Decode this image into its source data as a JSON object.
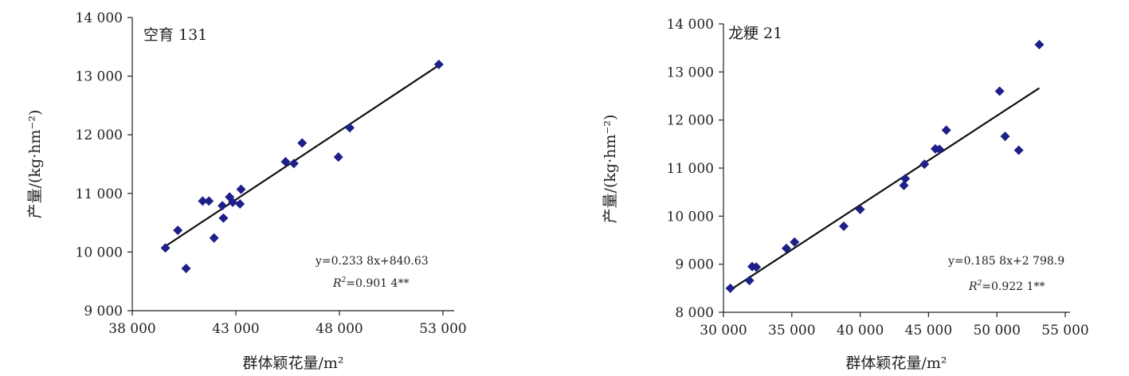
{
  "chart_data": [
    {
      "type": "scatter",
      "title": "空育 131",
      "xlabel": "群体颖花量/m²",
      "ylabel": "产量/(kg·hm⁻²)",
      "xlim": [
        38000,
        53000
      ],
      "ylim": [
        9000,
        14000
      ],
      "xticks": [
        38000,
        43000,
        48000,
        53000
      ],
      "yticks": [
        9000,
        10000,
        11000,
        12000,
        13000,
        14000
      ],
      "xtick_labels": [
        "38 000",
        "43 000",
        "48 000",
        "53 000"
      ],
      "ytick_labels": [
        "9 000",
        "10 000",
        "11 000",
        "12 000",
        "13 000",
        "14 000"
      ],
      "marker_color": "#1f1f8a",
      "points": [
        {
          "x": 39600,
          "y": 10070
        },
        {
          "x": 40200,
          "y": 10370
        },
        {
          "x": 40600,
          "y": 9720
        },
        {
          "x": 41400,
          "y": 10870
        },
        {
          "x": 41700,
          "y": 10870
        },
        {
          "x": 41950,
          "y": 10240
        },
        {
          "x": 42350,
          "y": 10790
        },
        {
          "x": 42400,
          "y": 10580
        },
        {
          "x": 42700,
          "y": 10940
        },
        {
          "x": 42850,
          "y": 10850
        },
        {
          "x": 43200,
          "y": 10820
        },
        {
          "x": 43250,
          "y": 11070
        },
        {
          "x": 45400,
          "y": 11540
        },
        {
          "x": 45800,
          "y": 11510
        },
        {
          "x": 46200,
          "y": 11860
        },
        {
          "x": 47950,
          "y": 11620
        },
        {
          "x": 48500,
          "y": 12120
        },
        {
          "x": 52800,
          "y": 13200
        }
      ],
      "trendline": {
        "slope": 0.2338,
        "intercept": 840.63,
        "x_from": 39600,
        "x_to": 52800
      },
      "equation": "y=0.233 8x+840.63",
      "r2_label": "R",
      "r2_sup": "2",
      "r2_value": "=0.901 4**"
    },
    {
      "type": "scatter",
      "title": "龙粳 21",
      "xlabel": "群体颖花量/m²",
      "ylabel": "产量/(kg·hm⁻²)",
      "xlim": [
        30000,
        55000
      ],
      "ylim": [
        8000,
        14000
      ],
      "xticks": [
        30000,
        35000,
        40000,
        45000,
        50000,
        55000
      ],
      "yticks": [
        8000,
        9000,
        10000,
        11000,
        12000,
        13000,
        14000
      ],
      "xtick_labels": [
        "30 000",
        "35 000",
        "40 000",
        "45 000",
        "50 000",
        "55 000"
      ],
      "ytick_labels": [
        "8 000",
        "9 000",
        "10 000",
        "11 000",
        "12 000",
        "13 000",
        "14 000"
      ],
      "marker_color": "#1f1f8a",
      "points": [
        {
          "x": 30500,
          "y": 8500
        },
        {
          "x": 31900,
          "y": 8660
        },
        {
          "x": 32100,
          "y": 8950
        },
        {
          "x": 32400,
          "y": 8940
        },
        {
          "x": 34600,
          "y": 9330
        },
        {
          "x": 35200,
          "y": 9460
        },
        {
          "x": 38800,
          "y": 9790
        },
        {
          "x": 40000,
          "y": 10140
        },
        {
          "x": 43200,
          "y": 10640
        },
        {
          "x": 43300,
          "y": 10780
        },
        {
          "x": 44700,
          "y": 11080
        },
        {
          "x": 45500,
          "y": 11400
        },
        {
          "x": 45800,
          "y": 11390
        },
        {
          "x": 46300,
          "y": 11790
        },
        {
          "x": 50200,
          "y": 12600
        },
        {
          "x": 50600,
          "y": 11660
        },
        {
          "x": 51600,
          "y": 11370
        },
        {
          "x": 53100,
          "y": 13570
        }
      ],
      "trendline": {
        "slope": 0.1858,
        "intercept": 2798.9,
        "x_from": 30500,
        "x_to": 53100
      },
      "equation": "y=0.185 8x+2 798.9",
      "r2_label": "R",
      "r2_sup": "2",
      "r2_value": "=0.922 1**"
    }
  ]
}
